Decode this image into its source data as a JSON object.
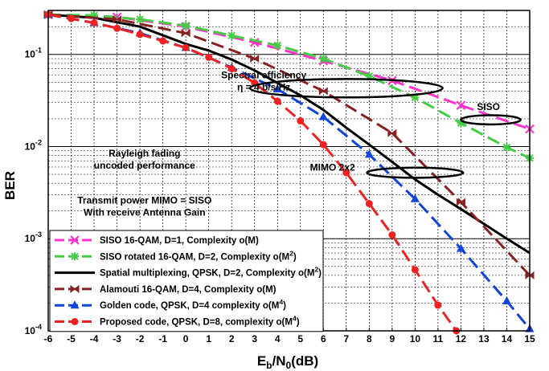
{
  "chart_data": {
    "type": "line",
    "xlabel": {
      "main": "E",
      "sub1": "b",
      "mid": "/N",
      "sub2": "0",
      "tail": "(dB)"
    },
    "ylabel": "BER",
    "xlim": [
      -6,
      15
    ],
    "ylim": [
      0.0001,
      0.3
    ],
    "yscale": "log",
    "xticks": [
      -6,
      -5,
      -4,
      -3,
      -2,
      -1,
      0,
      1,
      2,
      3,
      4,
      5,
      6,
      7,
      8,
      9,
      10,
      11,
      12,
      13,
      14,
      15
    ],
    "yticks": [
      {
        "value": 0.1,
        "base": "10",
        "exp": "-1"
      },
      {
        "value": 0.01,
        "base": "10",
        "exp": "-2"
      },
      {
        "value": 0.001,
        "base": "10",
        "exp": "-3"
      },
      {
        "value": 0.0001,
        "base": "10",
        "exp": "-4"
      }
    ],
    "grid": true,
    "legend_position": "bottom-left",
    "series": [
      {
        "name": "SISO 16-QAM, D=1, Complexity o(M)",
        "name_parts": {
          "text": "SISO 16-QAM, D=1, Complexity o(M)",
          "sup": "",
          "tail": ""
        },
        "color": "#ff33cc",
        "dash": "long-dash",
        "marker": "x",
        "x": [
          -6,
          -3,
          0,
          3,
          6,
          9,
          12,
          15
        ],
        "y": [
          0.27,
          0.255,
          0.2,
          0.135,
          0.085,
          0.052,
          0.028,
          0.0155
        ]
      },
      {
        "name": "SISO rotated 16-QAM, D=2, Complexity o(M2)",
        "name_parts": {
          "text": "SISO rotated 16-QAM, D=2, Complexity o(M",
          "sup": "2",
          "tail": ")"
        },
        "color": "#44cc44",
        "dash": "long-dash",
        "marker": "star",
        "x": [
          -6,
          -4,
          -2,
          0,
          2,
          4,
          6,
          8,
          10,
          12,
          14,
          15
        ],
        "y": [
          0.27,
          0.265,
          0.24,
          0.205,
          0.16,
          0.125,
          0.09,
          0.058,
          0.034,
          0.018,
          0.0098,
          0.0075
        ]
      },
      {
        "name": "Spatial multiplexing, QPSK, D=2, Complexity o(M2)",
        "name_parts": {
          "text": "Spatial multiplexing, QPSK, D=2, Complexity o(M",
          "sup": "2",
          "tail": ")"
        },
        "color": "#000000",
        "dash": "solid",
        "marker": "none",
        "x": [
          -6,
          -4,
          -2,
          0,
          1,
          2,
          3,
          4,
          5,
          6,
          7,
          8,
          9,
          10,
          11,
          12,
          13,
          14,
          15
        ],
        "y": [
          0.27,
          0.25,
          0.2,
          0.13,
          0.11,
          0.088,
          0.067,
          0.049,
          0.036,
          0.025,
          0.016,
          0.0105,
          0.0068,
          0.0044,
          0.003,
          0.0021,
          0.00145,
          0.001,
          0.0007
        ]
      },
      {
        "name": "Alamouti 16-QAM, D=4, Complexity o(M)",
        "name_parts": {
          "text": "Alamouti 16-QAM, D=4, Complexity o(M)",
          "sup": "",
          "tail": ""
        },
        "color": "#882222",
        "dash": "long-dash",
        "marker": "bowtie",
        "x": [
          -6,
          -3,
          0,
          3,
          6,
          9,
          12,
          15
        ],
        "y": [
          0.27,
          0.24,
          0.17,
          0.09,
          0.04,
          0.014,
          0.0025,
          0.0004
        ]
      },
      {
        "name": "Golden code, QPSK, D=4 complexity o(M4)",
        "name_parts": {
          "text": "Golden code, QPSK, D=4 complexity o(M",
          "sup": "4",
          "tail": ")"
        },
        "color": "#1144dd",
        "dash": "long-dash",
        "marker": "triangle",
        "x": [
          -6,
          -4,
          -2,
          0,
          2,
          4,
          6,
          8,
          10,
          12,
          14,
          15
        ],
        "y": [
          0.27,
          0.22,
          0.17,
          0.118,
          0.072,
          0.042,
          0.021,
          0.0082,
          0.0027,
          0.00078,
          0.00021,
          0.000105
        ]
      },
      {
        "name": "Proposed code, QPSK, D=8, complexity o(M4)",
        "name_parts": {
          "text": "Proposed code, QPSK, D=8, complexity o(M",
          "sup": "4",
          "tail": ")"
        },
        "color": "#ee2222",
        "dash": "long-dash",
        "marker": "circle",
        "x": [
          -6,
          -5,
          -4,
          -3,
          -2,
          -1,
          0,
          1,
          2,
          3,
          4,
          5,
          6,
          7,
          8,
          9,
          10,
          11,
          11.8
        ],
        "y": [
          0.27,
          0.245,
          0.22,
          0.192,
          0.165,
          0.14,
          0.118,
          0.093,
          0.07,
          0.049,
          0.031,
          0.019,
          0.0105,
          0.0052,
          0.0024,
          0.0011,
          0.00046,
          0.00019,
          0.0001
        ]
      }
    ],
    "annotations": [
      {
        "id": "spectral",
        "lines": [
          "Spectral efficiency",
          "η = 4 b/s/Hz"
        ],
        "x": 3.4,
        "y": 0.055,
        "align": "middle"
      },
      {
        "id": "siso",
        "lines": [
          "SISO"
        ],
        "x": 13.2,
        "y": 0.025,
        "align": "middle"
      },
      {
        "id": "mimo",
        "lines": [
          "MIMO 2x2"
        ],
        "x": 6.4,
        "y": 0.0055,
        "align": "middle"
      },
      {
        "id": "rayleigh",
        "lines": [
          "Rayleigh fading",
          "uncoded performance"
        ],
        "x": -1.8,
        "y": 0.0078,
        "align": "middle"
      },
      {
        "id": "transmit",
        "lines": [
          "Transmit power MIMO = SISO",
          "With receive Antenna Gain"
        ],
        "x": -1.8,
        "y": 0.0024,
        "align": "middle"
      }
    ],
    "ellipses": [
      {
        "id": "spectral-ellipse",
        "cx": 7.0,
        "cy": 0.043,
        "rx_db": 4.2,
        "ry_dec": 0.1
      },
      {
        "id": "siso-ellipse",
        "cx": 13.3,
        "cy": 0.0195,
        "rx_db": 1.3,
        "ry_dec": 0.05
      },
      {
        "id": "mimo-ellipse",
        "cx": 10.0,
        "cy": 0.0052,
        "rx_db": 2.1,
        "ry_dec": 0.055
      }
    ]
  }
}
